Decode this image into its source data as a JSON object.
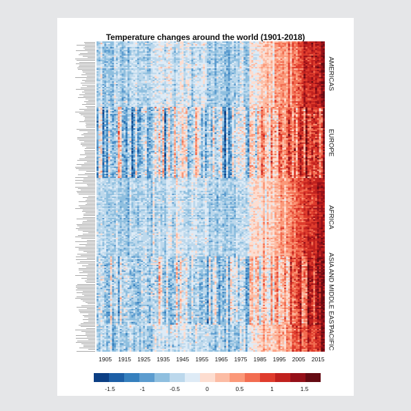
{
  "chart_data": {
    "type": "heatmap",
    "title": "Temperature changes around the world (1901-2018)",
    "x_start_year": 1901,
    "x_end_year": 2018,
    "x_ticks": [
      "1905",
      "1915",
      "1925",
      "1935",
      "1945",
      "1955",
      "1965",
      "1975",
      "1985",
      "1995",
      "2005",
      "2015"
    ],
    "regions": [
      {
        "name": "AMERICAS",
        "approx_rows": 46,
        "variability": 0.35
      },
      {
        "name": "EUROPE",
        "approx_rows": 50,
        "variability": 0.95
      },
      {
        "name": "AFRICA",
        "approx_rows": 55,
        "variability": 0.25
      },
      {
        "name": "ASIA AND MIDDLE EAST",
        "approx_rows": 48,
        "variability": 0.75
      },
      {
        "name": "PACIFIC",
        "approx_rows": 19,
        "variability": 0.4
      }
    ],
    "value_range": [
      -1.75,
      1.75
    ],
    "colorbar": {
      "colors": [
        "#0c3f84",
        "#1d5fa6",
        "#3680be",
        "#5c9ccf",
        "#8fbfdf",
        "#bcd8ec",
        "#deebf6",
        "#fdddd0",
        "#fcbca4",
        "#fb9879",
        "#f26d51",
        "#df3c2d",
        "#c0211e",
        "#951019",
        "#650b13"
      ],
      "tick_labels": [
        "-1.5",
        "-1",
        "-0.5",
        "0",
        "0.5",
        "1",
        "1.5"
      ],
      "tick_values": [
        -1.5,
        -1,
        -0.5,
        0,
        0.5,
        1,
        1.5
      ]
    }
  }
}
